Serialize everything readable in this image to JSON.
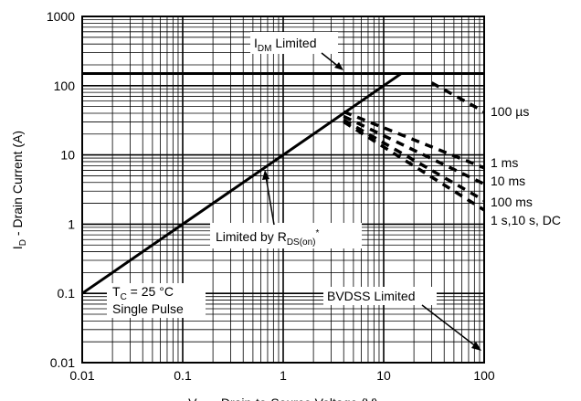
{
  "chart_data": {
    "type": "line",
    "log_x": true,
    "log_y": true,
    "grid": true,
    "xlim": [
      0.01,
      100
    ],
    "ylim": [
      0.01,
      1000
    ],
    "xticks": [
      0.01,
      0.1,
      1,
      10,
      100
    ],
    "yticks": [
      0.01,
      0.1,
      1,
      10,
      100,
      1000
    ],
    "xlabel": [
      "V",
      "DS",
      " - Drain-to-Source Voltage (V)"
    ],
    "ylabel": [
      "I",
      "D",
      " - Drain Current (A)"
    ],
    "series": [
      {
        "x": [
          0.01,
          15
        ],
        "values": [
          0.1,
          150
        ],
        "color": "#000000",
        "dashed": false
      },
      {
        "x": [
          0.01,
          100
        ],
        "values": [
          150,
          150
        ],
        "color": "#000000",
        "dashed": false
      },
      {
        "name": "100 µs",
        "x": [
          30,
          100
        ],
        "values": [
          110,
          42
        ],
        "color": "#000000",
        "dashed": true
      },
      {
        "name": "1 ms",
        "x": [
          4,
          100
        ],
        "values": [
          42,
          6.5
        ],
        "color": "#000000",
        "dashed": true
      },
      {
        "name": "10 ms",
        "x": [
          4,
          100
        ],
        "values": [
          36,
          3.8
        ],
        "color": "#000000",
        "dashed": true
      },
      {
        "name": "100 ms",
        "x": [
          4,
          100
        ],
        "values": [
          32,
          2.2
        ],
        "color": "#000000",
        "dashed": true
      },
      {
        "name": "1 s,10 s, DC",
        "x": [
          4,
          100
        ],
        "values": [
          30,
          1.6
        ],
        "color": "#000000",
        "dashed": true
      }
    ],
    "annotations": {
      "idm": [
        "I",
        "DM",
        " Limited"
      ],
      "rds": [
        "Limited by R",
        "DS(on)",
        "*"
      ],
      "tc": [
        "T",
        "C",
        " = 25 °C"
      ],
      "pulse": "Single Pulse",
      "bvdss": "BVDSS Limited"
    }
  }
}
